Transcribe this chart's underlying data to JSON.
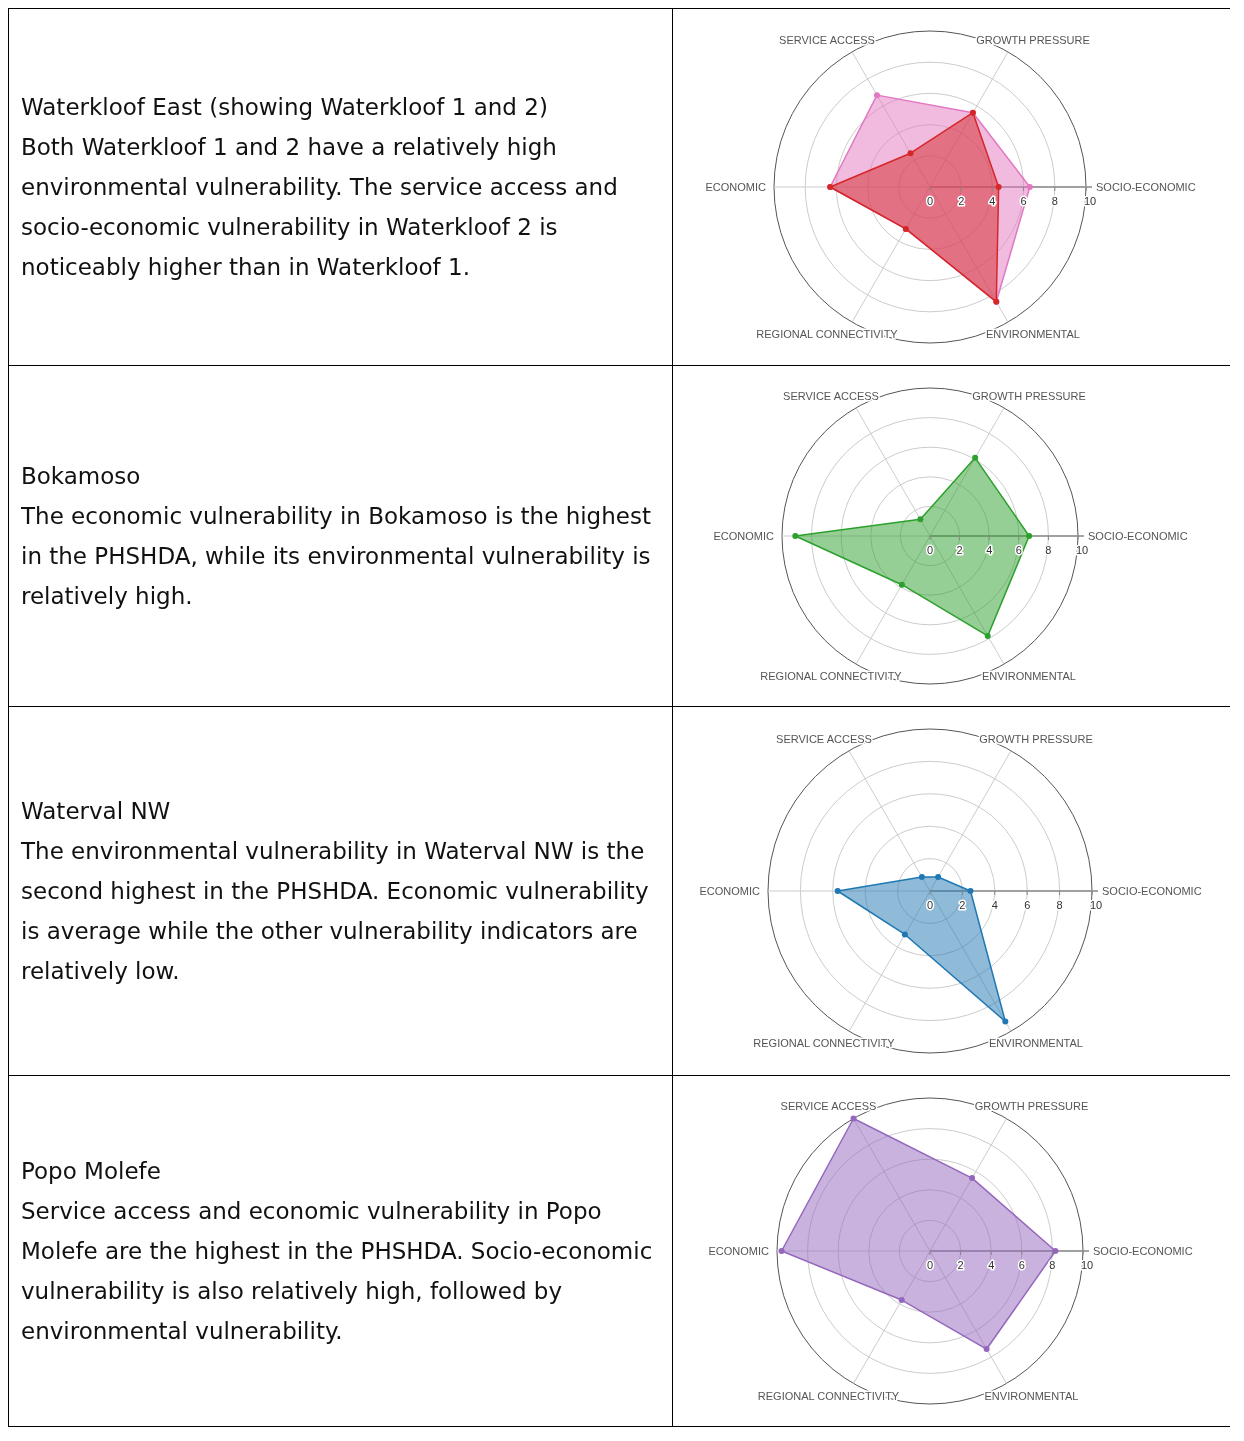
{
  "chart_data": [
    {
      "type": "other",
      "title": "Waterkloof East (showing Waterkloof 1 and 2)",
      "annotations": [
        "Both Waterkloof 1 and 2 have a relatively high environmental vulnerability. The service access and socio-economic vulnerability in Waterkloof 2 is noticeably higher than in Waterkloof 1."
      ]
    },
    {
      "type": "radar",
      "categories": [
        "GROWTH PRESSURE",
        "SOCIO-ECONOMIC",
        "ENVIRONMENTAL",
        "REGIONAL CONNECTIVITY",
        "ECONOMIC",
        "SERVICE ACCESS"
      ],
      "series": [
        {
          "color": "#e377c2",
          "values": [
            5.5,
            6.4,
            8.5,
            3.1,
            6.4,
            6.8
          ]
        },
        {
          "color": "#d62728",
          "values": [
            5.5,
            4.4,
            8.5,
            3.1,
            6.4,
            2.5
          ]
        }
      ],
      "ylim": [
        0,
        10
      ],
      "yticks": [
        0,
        2,
        4,
        6,
        8,
        10
      ],
      "grid": true,
      "marker": "circle"
    },
    {
      "type": "other",
      "title": "Bokamoso",
      "annotations": [
        "The economic vulnerability in Bokamoso is the highest in the PHSHDA, while its environmental vulnerability is relatively high."
      ]
    },
    {
      "type": "radar",
      "categories": [
        "GROWTH PRESSURE",
        "SOCIO-ECONOMIC",
        "ENVIRONMENTAL",
        "REGIONAL CONNECTIVITY",
        "ECONOMIC",
        "SERVICE ACCESS"
      ],
      "series": [
        {
          "color": "#2ca02c",
          "values": [
            6.1,
            6.7,
            7.8,
            3.8,
            9.1,
            1.3
          ]
        }
      ],
      "ylim": [
        0,
        10
      ],
      "yticks": [
        0,
        2,
        4,
        6,
        8,
        10
      ],
      "grid": true,
      "marker": "circle"
    },
    {
      "type": "other",
      "title": "Waterval NW",
      "annotations": [
        "The environmental vulnerability in Waterval NW is the second highest in the PHSHDA. Economic vulnerability is average while the other vulnerability indicators are relatively low."
      ]
    },
    {
      "type": "radar",
      "categories": [
        "GROWTH PRESSURE",
        "SOCIO-ECONOMIC",
        "ENVIRONMENTAL",
        "REGIONAL CONNECTIVITY",
        "ECONOMIC",
        "SERVICE ACCESS"
      ],
      "series": [
        {
          "color": "#1f77b4",
          "values": [
            1.0,
            2.5,
            9.3,
            3.1,
            5.7,
            1.0
          ]
        }
      ],
      "ylim": [
        0,
        10
      ],
      "yticks": [
        0,
        2,
        4,
        6,
        8,
        10
      ],
      "grid": true,
      "marker": "circle"
    },
    {
      "type": "other",
      "title": "Popo Molefe",
      "annotations": [
        "Service access and economic vulnerability in Popo Molefe are the highest in the PHSHDA. Socio-economic vulnerability is also relatively high, followed by environmental vulnerability."
      ]
    },
    {
      "type": "radar",
      "categories": [
        "GROWTH PRESSURE",
        "SOCIO-ECONOMIC",
        "ENVIRONMENTAL",
        "REGIONAL CONNECTIVITY",
        "ECONOMIC",
        "SERVICE ACCESS"
      ],
      "series": [
        {
          "color": "#9467bd",
          "values": [
            5.5,
            8.2,
            7.4,
            3.7,
            9.7,
            10.0
          ]
        }
      ],
      "ylim": [
        0,
        10
      ],
      "yticks": [
        0,
        2,
        4,
        6,
        8,
        10
      ],
      "grid": true,
      "marker": "circle"
    }
  ]
}
